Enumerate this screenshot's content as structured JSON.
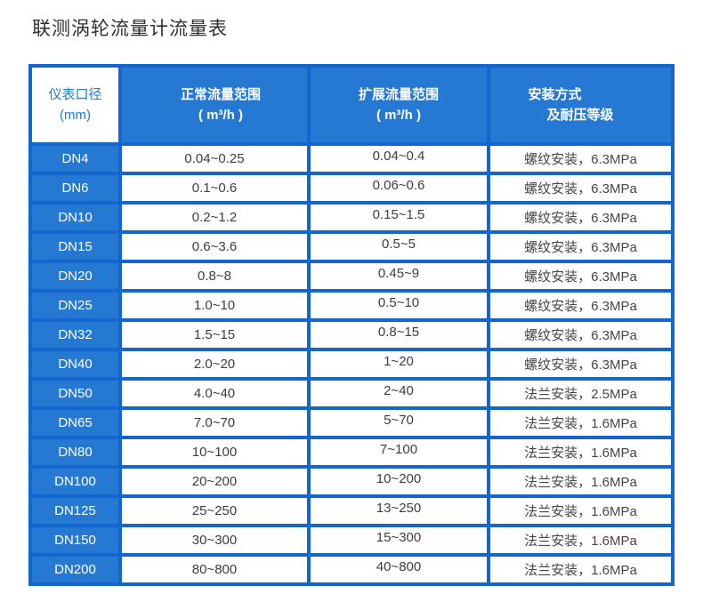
{
  "title": "联测涡轮流量计流量表",
  "colors": {
    "grid_blue": "#1366cd",
    "cell_blue": "#2679d3",
    "header_text_blue": "#2478d2",
    "value_text": "#3d3d3d"
  },
  "table": {
    "header": {
      "col1": {
        "line1": "仪表口径",
        "line2": "(mm)"
      },
      "col2": {
        "line1": "正常流量范围",
        "line2": "( m³/h )"
      },
      "col3": {
        "line1": "扩展流量范围",
        "line2": "( m³/h )"
      },
      "col4": {
        "line1": "安装方式",
        "line2": "及耐压等级"
      }
    },
    "rows": [
      {
        "dn": "DN4",
        "normal": "0.04~0.25",
        "extended": "0.04~0.4",
        "install": "螺纹安装，6.3MPa"
      },
      {
        "dn": "DN6",
        "normal": "0.1~0.6",
        "extended": "0.06~0.6",
        "install": "螺纹安装，6.3MPa"
      },
      {
        "dn": "DN10",
        "normal": "0.2~1.2",
        "extended": "0.15~1.5",
        "install": "螺纹安装，6.3MPa"
      },
      {
        "dn": "DN15",
        "normal": "0.6~3.6",
        "extended": "0.5~5",
        "install": "螺纹安装，6.3MPa"
      },
      {
        "dn": "DN20",
        "normal": "0.8~8",
        "extended": "0.45~9",
        "install": "螺纹安装，6.3MPa"
      },
      {
        "dn": "DN25",
        "normal": "1.0~10",
        "extended": "0.5~10",
        "install": "螺纹安装，6.3MPa"
      },
      {
        "dn": "DN32",
        "normal": "1.5~15",
        "extended": "0.8~15",
        "install": "螺纹安装，6.3MPa"
      },
      {
        "dn": "DN40",
        "normal": "2.0~20",
        "extended": "1~20",
        "install": "螺纹安装，6.3MPa"
      },
      {
        "dn": "DN50",
        "normal": "4.0~40",
        "extended": "2~40",
        "install": "法兰安装，2.5MPa"
      },
      {
        "dn": "DN65",
        "normal": "7.0~70",
        "extended": "5~70",
        "install": "法兰安装，1.6MPa"
      },
      {
        "dn": "DN80",
        "normal": "10~100",
        "extended": "7~100",
        "install": "法兰安装，1.6MPa"
      },
      {
        "dn": "DN100",
        "normal": "20~200",
        "extended": "10~200",
        "install": "法兰安装，1.6MPa"
      },
      {
        "dn": "DN125",
        "normal": "25~250",
        "extended": "13~250",
        "install": "法兰安装，1.6MPa"
      },
      {
        "dn": "DN150",
        "normal": "30~300",
        "extended": "15~300",
        "install": "法兰安装，1.6MPa"
      },
      {
        "dn": "DN200",
        "normal": "80~800",
        "extended": "40~800",
        "install": "法兰安装，1.6MPa"
      }
    ]
  }
}
